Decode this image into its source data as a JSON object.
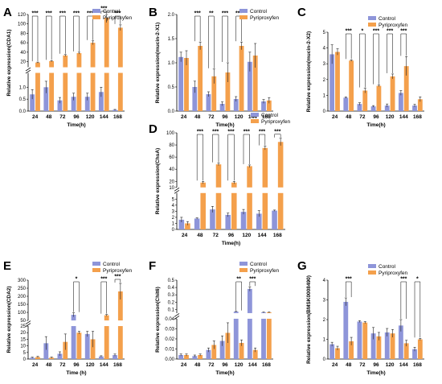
{
  "legend": {
    "control": "Control",
    "treatment": "Pyriproxyfen"
  },
  "colors": {
    "control": "#8e95d9",
    "treatment": "#f4a04c",
    "error": "#222222"
  },
  "chart_data": [
    {
      "panel": "A",
      "type": "bar",
      "categories": [
        "24",
        "48",
        "72",
        "96",
        "120",
        "144",
        "168"
      ],
      "series": [
        {
          "name": "Control",
          "values": [
            0.7,
            1.0,
            0.45,
            0.6,
            0.6,
            0.8,
            0.05
          ],
          "errors": [
            0.2,
            0.25,
            0.12,
            0.15,
            0.15,
            0.2,
            0.02
          ]
        },
        {
          "name": "Pyriproxyfen",
          "values": [
            18,
            21,
            33,
            38,
            60,
            113,
            92
          ],
          "errors": [
            1,
            1,
            2,
            2,
            4,
            10,
            6
          ]
        }
      ],
      "ylabel": "Relative expression(CDA1)",
      "xlabel": "Time(h)",
      "break": {
        "lower": [
          0,
          1.6
        ],
        "upper": [
          8,
          120
        ]
      },
      "yticks_lower": [
        "0.0",
        "0.5",
        "1.0"
      ],
      "yticks_upper": [
        "20",
        "40",
        "60",
        "80",
        "100",
        "120"
      ],
      "significance": [
        "***",
        "***",
        "***",
        "***",
        "***",
        "***",
        "***"
      ]
    },
    {
      "panel": "B",
      "type": "bar",
      "categories": [
        "24",
        "48",
        "72",
        "96",
        "120",
        "144",
        "168"
      ],
      "series": [
        {
          "name": "Control",
          "values": [
            1.12,
            0.5,
            0.35,
            0.15,
            0.25,
            1.02,
            0.2
          ],
          "errors": [
            0.1,
            0.12,
            0.05,
            0.04,
            0.05,
            0.2,
            0.04
          ]
        },
        {
          "name": "Pyriproxyfen",
          "values": [
            1.1,
            1.35,
            0.72,
            0.8,
            1.35,
            1.15,
            0.22
          ],
          "errors": [
            0.15,
            0.08,
            0.15,
            0.2,
            0.08,
            0.25,
            0.06
          ]
        }
      ],
      "ylabel": "Relative expression(mucin-2-X1)",
      "xlabel": "Time(h)",
      "ylim": [
        0,
        2.0
      ],
      "yticks": [
        "0.0",
        "0.5",
        "1.0",
        "1.5",
        "2.0"
      ],
      "significance": [
        "",
        "***",
        "**",
        "***",
        "***",
        "",
        ""
      ]
    },
    {
      "panel": "C",
      "type": "bar",
      "categories": [
        "24",
        "48",
        "72",
        "96",
        "120",
        "144",
        "168"
      ],
      "series": [
        {
          "name": "Control",
          "values": [
            3.6,
            0.85,
            0.45,
            0.3,
            0.35,
            1.15,
            0.35
          ],
          "errors": [
            0.6,
            0.05,
            0.08,
            0.05,
            0.1,
            0.15,
            0.08
          ]
        },
        {
          "name": "Pyriproxyfen",
          "values": [
            3.75,
            3.2,
            1.3,
            1.6,
            2.2,
            2.85,
            0.75
          ],
          "errors": [
            0.2,
            0.05,
            0.15,
            0.05,
            0.15,
            0.6,
            0.15
          ]
        }
      ],
      "ylabel": "Relative expression(mucin-2-X2)",
      "xlabel": "Time(h)",
      "ylim": [
        0,
        5
      ],
      "yticks": [
        "0",
        "1",
        "2",
        "3",
        "4",
        "5"
      ],
      "significance": [
        "",
        "***",
        "*",
        "***",
        "***",
        "***",
        ""
      ]
    },
    {
      "panel": "D",
      "type": "bar",
      "categories": [
        "24",
        "48",
        "72",
        "96",
        "120",
        "144",
        "168"
      ],
      "series": [
        {
          "name": "Control",
          "values": [
            1.6,
            1.8,
            3.3,
            2.4,
            2.9,
            2.6,
            3.1
          ],
          "errors": [
            0.4,
            0.1,
            0.5,
            0.3,
            0.4,
            0.5,
            0.1
          ]
        },
        {
          "name": "Pyriproxyfen",
          "values": [
            1.0,
            18,
            48,
            18,
            45,
            75,
            85
          ],
          "errors": [
            0.3,
            2,
            2,
            2,
            2,
            3,
            6
          ]
        }
      ],
      "ylabel": "Relative expression(ChsA)",
      "xlabel": "Time(h)",
      "break": {
        "lower": [
          0,
          6
        ],
        "upper": [
          10,
          100
        ]
      },
      "yticks_lower": [
        "0",
        "1",
        "2",
        "3",
        "4",
        "5"
      ],
      "yticks_upper": [
        "10",
        "20",
        "40",
        "60",
        "80",
        "100"
      ],
      "significance": [
        "",
        "***",
        "***",
        "***",
        "***",
        "***",
        "***"
      ]
    },
    {
      "panel": "E",
      "type": "bar",
      "categories": [
        "24",
        "48",
        "72",
        "96",
        "120",
        "144",
        "168"
      ],
      "series": [
        {
          "name": "Control",
          "values": [
            1,
            12,
            4,
            85,
            19,
            2,
            3
          ],
          "errors": [
            0.4,
            5,
            1.5,
            12,
            2,
            0.5,
            0.8
          ]
        },
        {
          "name": "Pyriproxyfen",
          "values": [
            1.5,
            1,
            13,
            20,
            15,
            82,
            230
          ],
          "errors": [
            0.5,
            0.5,
            6,
            1,
            6,
            5,
            50
          ]
        }
      ],
      "ylabel": "Relative expression(CDA2)",
      "xlabel": "Time (h)",
      "break": {
        "lower": [
          0,
          25
        ],
        "upper": [
          50,
          300
        ]
      },
      "yticks_lower": [
        "0",
        "5",
        "10",
        "15",
        "20",
        "25"
      ],
      "yticks_upper": [
        "50",
        "100",
        "150",
        "200",
        "250",
        "300"
      ],
      "significance": [
        "",
        "",
        "",
        "*",
        "",
        "***",
        "***"
      ]
    },
    {
      "panel": "F",
      "type": "bar",
      "categories": [
        "24",
        "48",
        "72",
        "96",
        "120",
        "144",
        "168"
      ],
      "series": [
        {
          "name": "Control",
          "values": [
            0.004,
            0.003,
            0.009,
            0.018,
            0.07,
            0.38,
            0.06
          ],
          "errors": [
            0.001,
            0.001,
            0.002,
            0.005,
            0.005,
            0.03,
            0.005
          ]
        },
        {
          "name": "Pyriproxyfen",
          "values": [
            0.004,
            0.004,
            0.014,
            0.026,
            0.016,
            0.009,
            0.06
          ],
          "errors": [
            0.001,
            0.001,
            0.004,
            0.01,
            0.003,
            0.002,
            0.005
          ]
        }
      ],
      "ylabel": "Relative expression(Chit6)",
      "xlabel": "Time(h)",
      "break": {
        "lower": [
          0,
          0.04
        ],
        "upper": [
          0.05,
          0.5
        ]
      },
      "yticks_lower": [
        "0.00",
        "0.01",
        "0.02",
        "0.03",
        "0.04"
      ],
      "yticks_upper": [
        "0.1",
        "0.2",
        "0.3",
        "0.4",
        "0.5"
      ],
      "significance": [
        "",
        "",
        "",
        "",
        "**",
        "***",
        ""
      ]
    },
    {
      "panel": "G",
      "type": "bar",
      "categories": [
        "24",
        "48",
        "72",
        "96",
        "120",
        "144",
        "168"
      ],
      "series": [
        {
          "name": "Control",
          "values": [
            0.75,
            2.9,
            1.9,
            1.3,
            1.35,
            1.7,
            0.5
          ],
          "errors": [
            0.1,
            0.2,
            0.05,
            0.3,
            0.2,
            0.3,
            0.1
          ]
        },
        {
          "name": "Pyriproxyfen",
          "values": [
            0.55,
            0.9,
            1.85,
            1.15,
            1.3,
            0.8,
            1.0
          ],
          "errors": [
            0.1,
            0.2,
            0.05,
            0.2,
            0.2,
            0.15,
            0.05
          ]
        }
      ],
      "ylabel": "Relative expression(BMSK0008490)",
      "xlabel": "Time(h)",
      "ylim": [
        0,
        4
      ],
      "yticks": [
        "0",
        "1",
        "2",
        "3",
        "4"
      ],
      "significance": [
        "",
        "***",
        "",
        "",
        "",
        "***",
        "*"
      ]
    }
  ]
}
